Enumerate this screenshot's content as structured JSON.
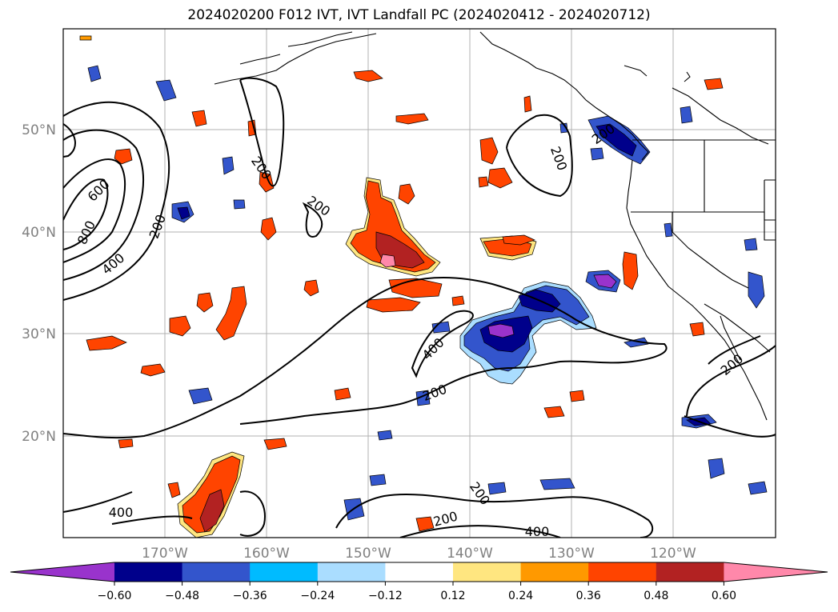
{
  "title": "2024020200 F012 IVT, IVT Landfall PC (2024020412 - 2024020712)",
  "map": {
    "lon_ticks": [
      "170°W",
      "160°W",
      "150°W",
      "140°W",
      "130°W",
      "120°W"
    ],
    "lat_ticks": [
      "50°N",
      "40°N",
      "30°N",
      "20°N"
    ],
    "contour_labels": [
      "200",
      "200",
      "200",
      "200",
      "200",
      "200",
      "200",
      "200",
      "200",
      "400",
      "400",
      "400",
      "400",
      "600",
      "800"
    ]
  },
  "colorbar": {
    "colors": [
      "#9933cc",
      "#00008b",
      "#3355cc",
      "#00bbff",
      "#aaddff",
      "#ffffff",
      "#ffe680",
      "#ff9900",
      "#ff4400",
      "#b22222",
      "#ff88aa"
    ],
    "ticks": [
      "−0.60",
      "−0.48",
      "−0.36",
      "−0.24",
      "−0.12",
      "0.12",
      "0.24",
      "0.36",
      "0.48",
      "0.60"
    ]
  }
}
